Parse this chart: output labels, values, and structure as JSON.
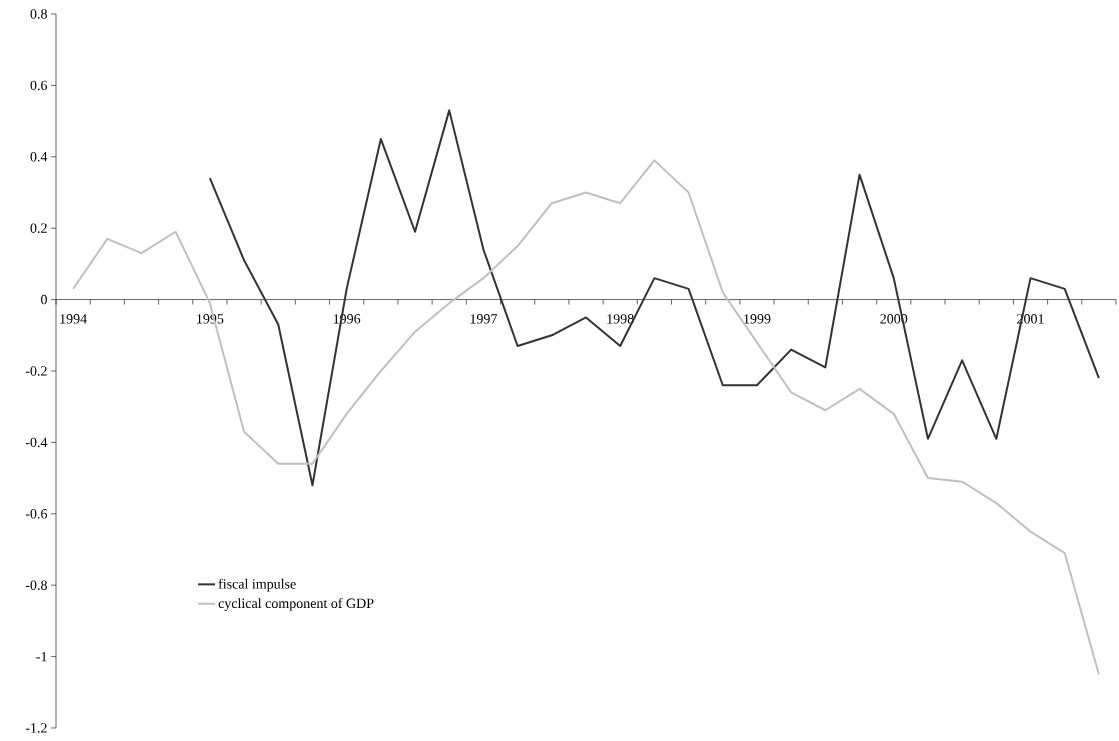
{
  "chart_data": {
    "type": "line",
    "categories": [
      "1994",
      null,
      null,
      null,
      "1995",
      null,
      null,
      null,
      "1996",
      null,
      null,
      null,
      "1997",
      null,
      null,
      null,
      "1998",
      null,
      null,
      null,
      "1999",
      null,
      null,
      null,
      "2000",
      null,
      null,
      null,
      "2001",
      null,
      null
    ],
    "series": [
      {
        "name": "fiscal impulse",
        "color": "#333333",
        "values": [
          null,
          null,
          null,
          null,
          0.34,
          0.11,
          -0.07,
          -0.52,
          0.03,
          0.45,
          0.19,
          0.53,
          0.14,
          -0.13,
          -0.1,
          -0.05,
          -0.13,
          0.06,
          0.03,
          -0.24,
          -0.24,
          -0.14,
          -0.19,
          0.35,
          0.06,
          -0.39,
          -0.17,
          -0.39,
          0.06,
          0.03,
          -0.22
        ]
      },
      {
        "name": "cyclical component of GDP",
        "color": "#c0c0c0",
        "values": [
          0.03,
          0.17,
          0.13,
          0.19,
          -0.01,
          -0.37,
          -0.46,
          -0.46,
          -0.32,
          -0.2,
          -0.09,
          -0.01,
          0.06,
          0.15,
          0.27,
          0.3,
          0.27,
          0.39,
          0.3,
          0.02,
          -0.12,
          -0.26,
          -0.31,
          -0.25,
          -0.32,
          -0.5,
          -0.51,
          -0.57,
          -0.65,
          -0.71,
          -1.05
        ]
      }
    ],
    "ylim": [
      -1.2,
      0.8
    ],
    "yticks": [
      -1.2,
      -1,
      -0.8,
      -0.6,
      -0.4,
      -0.2,
      0,
      0.2,
      0.4,
      0.6,
      0.8
    ],
    "legend": "bottom left",
    "grid": false,
    "marker": "none",
    "line_style": "solid"
  }
}
